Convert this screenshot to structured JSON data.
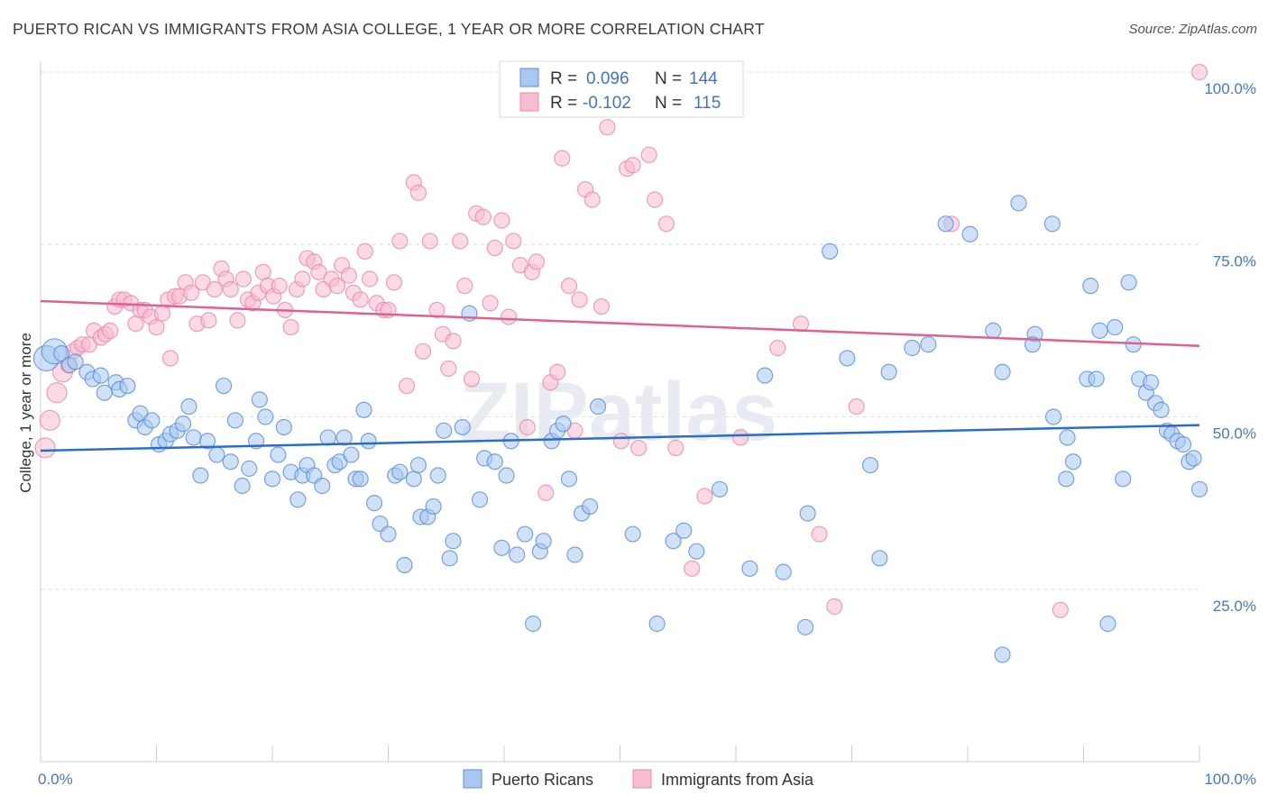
{
  "title": "PUERTO RICAN VS IMMIGRANTS FROM ASIA COLLEGE, 1 YEAR OR MORE CORRELATION CHART",
  "source": "Source: ZipAtlas.com",
  "watermark": "ZIPatlas",
  "colors": {
    "blue_fill": "#a8c8f0",
    "blue_stroke": "#5b8fd6",
    "blue_line": "#2a6dd0",
    "pink_fill": "#f8bcd0",
    "pink_stroke": "#e88aaa",
    "pink_line": "#e06090",
    "tick_text": "#4477cc",
    "grid": "#dddddd"
  },
  "legend": {
    "rows": [
      {
        "r_label": "R =",
        "r_value": "0.096",
        "n_label": "N =",
        "n_value": "144",
        "series": "blue"
      },
      {
        "r_label": "R =",
        "r_value": "-0.102",
        "n_label": "N =",
        "n_value": "115",
        "series": "pink"
      }
    ]
  },
  "chart_data": {
    "type": "scatter",
    "ylabel": "College, 1 year or more",
    "xlabel": "",
    "xlim": [
      0,
      100
    ],
    "ylim": [
      0,
      100
    ],
    "x_tick_labels": {
      "0": "0.0%",
      "100": "100.0%"
    },
    "y_tick_labels": {
      "25": "25.0%",
      "50": "50.0%",
      "75": "75.0%",
      "100": "100.0%"
    },
    "grid": "horizontal dashed",
    "legend_position": "top-center",
    "series": [
      {
        "name": "Puerto Ricans",
        "color": "blue",
        "trend": {
          "x": [
            0,
            100
          ],
          "y": [
            45.1,
            48.8
          ]
        },
        "points": [
          [
            0.5,
            58.5
          ],
          [
            1.2,
            59.5
          ],
          [
            1.8,
            59.2
          ],
          [
            2.5,
            57.5
          ],
          [
            3.0,
            58.0
          ],
          [
            4.0,
            56.5
          ],
          [
            4.5,
            55.5
          ],
          [
            5.2,
            56.0
          ],
          [
            5.5,
            53.5
          ],
          [
            6.5,
            55.0
          ],
          [
            6.8,
            54.0
          ],
          [
            7.5,
            54.5
          ],
          [
            8.2,
            49.5
          ],
          [
            8.6,
            50.5
          ],
          [
            9.0,
            48.5
          ],
          [
            9.6,
            49.5
          ],
          [
            10.2,
            46.0
          ],
          [
            10.8,
            46.5
          ],
          [
            11.2,
            47.5
          ],
          [
            11.8,
            48.0
          ],
          [
            12.3,
            49.0
          ],
          [
            12.8,
            51.5
          ],
          [
            13.2,
            47.0
          ],
          [
            13.8,
            41.5
          ],
          [
            14.4,
            46.5
          ],
          [
            15.2,
            44.5
          ],
          [
            15.8,
            54.5
          ],
          [
            16.4,
            43.5
          ],
          [
            16.8,
            49.5
          ],
          [
            17.4,
            40.0
          ],
          [
            18.0,
            42.5
          ],
          [
            18.6,
            46.5
          ],
          [
            18.9,
            52.5
          ],
          [
            19.4,
            50.0
          ],
          [
            20.0,
            41.0
          ],
          [
            20.5,
            44.5
          ],
          [
            21.0,
            48.5
          ],
          [
            21.6,
            42.0
          ],
          [
            22.2,
            38.0
          ],
          [
            22.6,
            41.5
          ],
          [
            23.0,
            43.0
          ],
          [
            23.6,
            41.5
          ],
          [
            24.3,
            40.0
          ],
          [
            24.8,
            47.0
          ],
          [
            25.4,
            43.0
          ],
          [
            25.8,
            43.5
          ],
          [
            26.2,
            47.0
          ],
          [
            26.8,
            44.5
          ],
          [
            27.2,
            41.0
          ],
          [
            27.6,
            41.0
          ],
          [
            27.9,
            51.0
          ],
          [
            28.3,
            46.5
          ],
          [
            28.8,
            37.5
          ],
          [
            29.3,
            34.5
          ],
          [
            30.0,
            33.0
          ],
          [
            30.6,
            41.5
          ],
          [
            31.0,
            42.0
          ],
          [
            31.4,
            28.5
          ],
          [
            32.2,
            41.0
          ],
          [
            32.6,
            43.0
          ],
          [
            32.8,
            35.5
          ],
          [
            33.4,
            35.5
          ],
          [
            33.9,
            37.0
          ],
          [
            34.3,
            41.5
          ],
          [
            34.8,
            48.0
          ],
          [
            35.3,
            29.5
          ],
          [
            35.6,
            32.0
          ],
          [
            36.4,
            48.5
          ],
          [
            37.0,
            65.0
          ],
          [
            37.9,
            38.0
          ],
          [
            38.3,
            44.0
          ],
          [
            39.2,
            43.5
          ],
          [
            39.8,
            31.0
          ],
          [
            40.2,
            41.5
          ],
          [
            40.6,
            46.5
          ],
          [
            41.1,
            30.0
          ],
          [
            41.8,
            33.0
          ],
          [
            42.5,
            20.0
          ],
          [
            43.1,
            30.5
          ],
          [
            43.4,
            32.0
          ],
          [
            44.1,
            46.5
          ],
          [
            44.6,
            48.0
          ],
          [
            45.1,
            49.0
          ],
          [
            45.6,
            41.0
          ],
          [
            46.1,
            30.0
          ],
          [
            46.7,
            36.0
          ],
          [
            47.4,
            37.0
          ],
          [
            48.1,
            51.5
          ],
          [
            51.1,
            33.0
          ],
          [
            53.2,
            20.0
          ],
          [
            54.6,
            32.0
          ],
          [
            55.5,
            33.5
          ],
          [
            56.6,
            30.5
          ],
          [
            58.6,
            39.5
          ],
          [
            61.2,
            28.0
          ],
          [
            62.5,
            56.0
          ],
          [
            64.1,
            27.5
          ],
          [
            66.0,
            19.5
          ],
          [
            66.2,
            36.0
          ],
          [
            68.1,
            74.0
          ],
          [
            69.6,
            58.5
          ],
          [
            71.6,
            43.0
          ],
          [
            72.4,
            29.5
          ],
          [
            73.2,
            56.5
          ],
          [
            75.2,
            60.0
          ],
          [
            76.6,
            60.5
          ],
          [
            78.1,
            78.0
          ],
          [
            80.2,
            76.5
          ],
          [
            82.2,
            62.5
          ],
          [
            83.0,
            56.5
          ],
          [
            84.4,
            81.0
          ],
          [
            85.8,
            62.0
          ],
          [
            85.6,
            60.5
          ],
          [
            87.3,
            78.0
          ],
          [
            87.4,
            50.0
          ],
          [
            88.5,
            41.0
          ],
          [
            88.6,
            47.0
          ],
          [
            89.1,
            43.5
          ],
          [
            90.3,
            55.5
          ],
          [
            90.6,
            69.0
          ],
          [
            91.1,
            55.5
          ],
          [
            91.4,
            62.5
          ],
          [
            92.1,
            20.0
          ],
          [
            92.7,
            63.0
          ],
          [
            93.4,
            41.0
          ],
          [
            93.9,
            69.5
          ],
          [
            94.3,
            60.5
          ],
          [
            94.8,
            55.5
          ],
          [
            95.4,
            53.5
          ],
          [
            95.8,
            55.0
          ],
          [
            96.2,
            52.0
          ],
          [
            96.7,
            51.0
          ],
          [
            97.2,
            48.0
          ],
          [
            97.6,
            47.5
          ],
          [
            98.1,
            46.5
          ],
          [
            98.6,
            46.0
          ],
          [
            99.1,
            43.5
          ],
          [
            99.5,
            44.0
          ],
          [
            100.0,
            39.5
          ],
          [
            83.0,
            15.5
          ]
        ]
      },
      {
        "name": "Immigrants from Asia",
        "color": "pink",
        "trend": {
          "x": [
            0,
            100
          ],
          "y": [
            66.8,
            60.3
          ]
        },
        "points": [
          [
            0.4,
            45.5
          ],
          [
            0.8,
            49.5
          ],
          [
            1.4,
            53.5
          ],
          [
            1.9,
            56.5
          ],
          [
            2.4,
            57.5
          ],
          [
            2.8,
            59.5
          ],
          [
            3.2,
            60.0
          ],
          [
            3.6,
            60.5
          ],
          [
            4.2,
            60.5
          ],
          [
            4.6,
            62.5
          ],
          [
            5.2,
            61.5
          ],
          [
            5.6,
            62.0
          ],
          [
            6.0,
            62.5
          ],
          [
            6.4,
            66.0
          ],
          [
            6.8,
            67.0
          ],
          [
            7.2,
            67.0
          ],
          [
            7.8,
            66.5
          ],
          [
            8.2,
            63.5
          ],
          [
            8.6,
            65.5
          ],
          [
            9.0,
            65.5
          ],
          [
            9.5,
            64.5
          ],
          [
            10.0,
            63.0
          ],
          [
            10.5,
            65.0
          ],
          [
            11.0,
            67.0
          ],
          [
            11.2,
            58.5
          ],
          [
            11.6,
            67.5
          ],
          [
            12.0,
            67.5
          ],
          [
            12.5,
            69.5
          ],
          [
            13.0,
            68.0
          ],
          [
            13.5,
            63.5
          ],
          [
            14.0,
            69.5
          ],
          [
            14.5,
            64.0
          ],
          [
            15.0,
            68.5
          ],
          [
            15.6,
            71.5
          ],
          [
            16.0,
            70.0
          ],
          [
            16.4,
            68.5
          ],
          [
            17.0,
            64.0
          ],
          [
            17.5,
            70.0
          ],
          [
            17.9,
            67.0
          ],
          [
            18.3,
            66.5
          ],
          [
            18.8,
            68.0
          ],
          [
            19.2,
            71.0
          ],
          [
            19.6,
            69.0
          ],
          [
            20.1,
            67.5
          ],
          [
            20.6,
            69.0
          ],
          [
            21.1,
            65.5
          ],
          [
            21.6,
            63.0
          ],
          [
            22.1,
            68.5
          ],
          [
            22.6,
            70.0
          ],
          [
            23.0,
            73.0
          ],
          [
            23.6,
            72.5
          ],
          [
            24.0,
            71.0
          ],
          [
            24.4,
            68.5
          ],
          [
            25.1,
            70.0
          ],
          [
            25.6,
            69.0
          ],
          [
            26.0,
            72.0
          ],
          [
            26.6,
            70.5
          ],
          [
            27.0,
            68.0
          ],
          [
            27.6,
            67.0
          ],
          [
            28.0,
            74.0
          ],
          [
            28.4,
            70.0
          ],
          [
            29.0,
            66.5
          ],
          [
            29.6,
            65.5
          ],
          [
            30.0,
            65.5
          ],
          [
            30.5,
            69.5
          ],
          [
            31.0,
            75.5
          ],
          [
            31.6,
            54.5
          ],
          [
            32.2,
            84.0
          ],
          [
            32.6,
            82.5
          ],
          [
            33.0,
            59.5
          ],
          [
            33.6,
            75.5
          ],
          [
            34.2,
            65.5
          ],
          [
            34.7,
            62.0
          ],
          [
            35.2,
            57.0
          ],
          [
            35.6,
            61.0
          ],
          [
            36.2,
            75.5
          ],
          [
            36.6,
            69.0
          ],
          [
            37.2,
            55.5
          ],
          [
            37.6,
            79.5
          ],
          [
            38.2,
            79.0
          ],
          [
            38.8,
            66.5
          ],
          [
            39.2,
            74.5
          ],
          [
            39.8,
            78.5
          ],
          [
            40.4,
            64.5
          ],
          [
            40.8,
            75.5
          ],
          [
            41.4,
            72.0
          ],
          [
            42.0,
            48.5
          ],
          [
            42.4,
            71.0
          ],
          [
            42.8,
            72.5
          ],
          [
            43.6,
            39.0
          ],
          [
            44.0,
            55.0
          ],
          [
            44.6,
            56.5
          ],
          [
            45.0,
            87.5
          ],
          [
            45.6,
            69.0
          ],
          [
            46.1,
            48.0
          ],
          [
            46.5,
            67.0
          ],
          [
            47.0,
            83.0
          ],
          [
            47.6,
            81.5
          ],
          [
            48.4,
            66.0
          ],
          [
            48.9,
            92.0
          ],
          [
            50.1,
            46.5
          ],
          [
            50.6,
            86.0
          ],
          [
            51.1,
            86.5
          ],
          [
            51.6,
            45.5
          ],
          [
            52.5,
            88.0
          ],
          [
            53.0,
            81.5
          ],
          [
            54.0,
            78.0
          ],
          [
            54.8,
            45.5
          ],
          [
            56.2,
            28.0
          ],
          [
            57.3,
            38.5
          ],
          [
            60.4,
            47.0
          ],
          [
            63.6,
            60.0
          ],
          [
            65.6,
            63.5
          ],
          [
            67.2,
            33.0
          ],
          [
            68.5,
            22.5
          ],
          [
            70.4,
            51.5
          ],
          [
            78.6,
            78.0
          ],
          [
            88.0,
            22.0
          ],
          [
            100.0,
            100.0
          ]
        ]
      }
    ]
  },
  "bottom_legend": [
    {
      "label": "Puerto Ricans",
      "series": "blue"
    },
    {
      "label": "Immigrants from Asia",
      "series": "pink"
    }
  ]
}
